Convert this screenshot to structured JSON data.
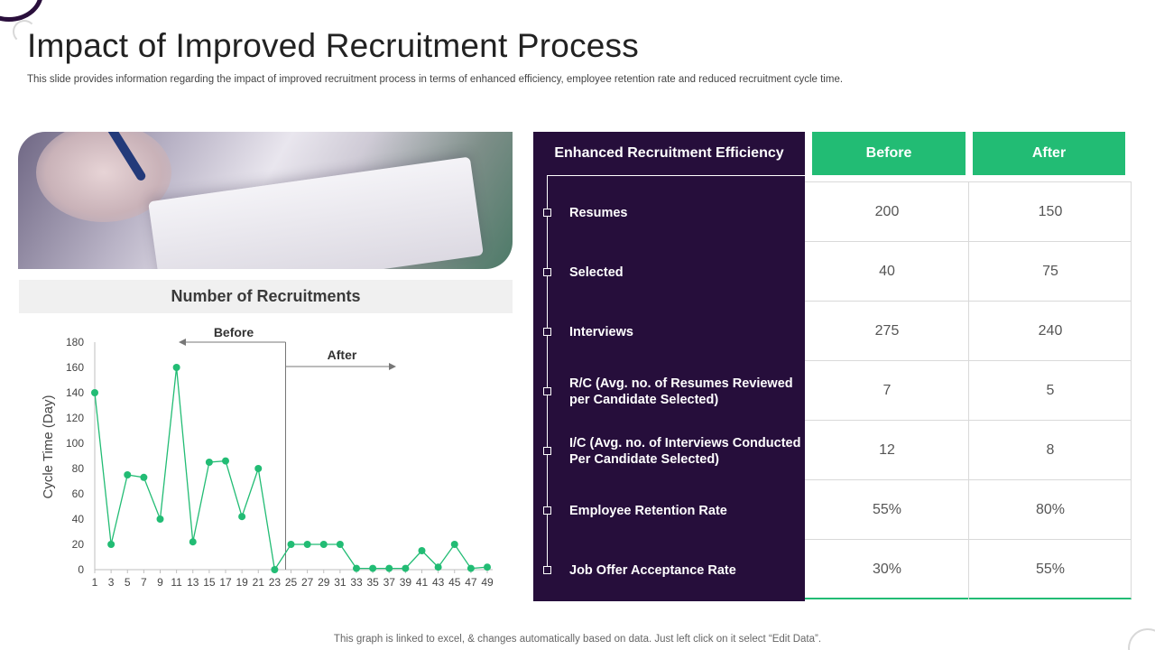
{
  "header": {
    "title": "Impact of Improved Recruitment Process",
    "subtitle": "This slide provides information regarding the impact of improved recruitment process in terms of enhanced efficiency, employee retention rate and reduced recruitment cycle time."
  },
  "colors": {
    "accent": "#22bc74",
    "dark": "#260e3b"
  },
  "chart_data": {
    "type": "line",
    "title": "Number of Recruitments",
    "ylabel": "Cycle Time (Day)",
    "xlabel": "",
    "ylim": [
      0,
      180
    ],
    "yticks": [
      0,
      20,
      40,
      60,
      80,
      100,
      120,
      140,
      160,
      180
    ],
    "xticks": [
      "1",
      "3",
      "5",
      "7",
      "9",
      "11",
      "13",
      "15",
      "17",
      "19",
      "21",
      "23",
      "25",
      "27",
      "29",
      "31",
      "33",
      "35",
      "37",
      "39",
      "41",
      "43",
      "45",
      "47",
      "49"
    ],
    "x": [
      1,
      3,
      5,
      7,
      9,
      11,
      13,
      15,
      17,
      19,
      21,
      23,
      25,
      27,
      29,
      31,
      33,
      35,
      37,
      39,
      41,
      43,
      45,
      47,
      49
    ],
    "values": [
      140,
      20,
      75,
      73,
      40,
      160,
      22,
      85,
      86,
      42,
      80,
      0,
      20,
      20,
      20,
      20,
      1,
      1,
      1,
      1,
      15,
      2,
      20,
      1,
      2
    ],
    "split_at": 25,
    "annotations": {
      "before": "Before",
      "after": "After"
    },
    "grid": false,
    "color": "#22bc74"
  },
  "table": {
    "header": "Enhanced Recruitment Efficiency",
    "columns": [
      "Before",
      "After"
    ],
    "rows": [
      {
        "label": "Resumes",
        "before": "200",
        "after": "150"
      },
      {
        "label": "Selected",
        "before": "40",
        "after": "75"
      },
      {
        "label": "Interviews",
        "before": "275",
        "after": "240"
      },
      {
        "label": "R/C (Avg. no. of Resumes Reviewed per Candidate Selected)",
        "before": "7",
        "after": "5"
      },
      {
        "label": "I/C (Avg. no. of Interviews Conducted Per Candidate Selected)",
        "before": "12",
        "after": "8"
      },
      {
        "label": "Employee Retention Rate",
        "before": "55%",
        "after": "80%"
      },
      {
        "label": "Job Offer Acceptance Rate",
        "before": "30%",
        "after": "55%"
      }
    ]
  },
  "footnote": "This graph is linked to excel, & changes automatically based on data. Just left click on it select “Edit Data”."
}
